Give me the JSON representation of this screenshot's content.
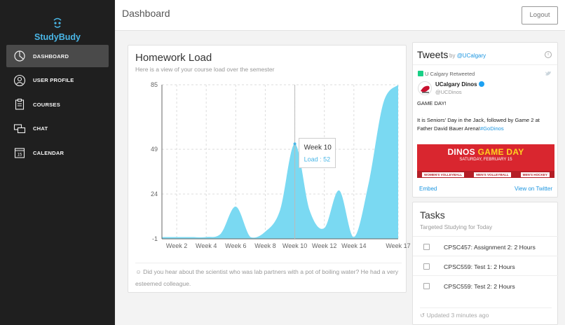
{
  "app": {
    "name": "StudyBudy",
    "accent": "#4ab6e6"
  },
  "sidebar": {
    "items": [
      {
        "label": "DASHBOARD",
        "icon": "pie-chart-icon",
        "active": true
      },
      {
        "label": "USER PROFILE",
        "icon": "user-icon",
        "active": false
      },
      {
        "label": "COURSES",
        "icon": "clipboard-icon",
        "active": false
      },
      {
        "label": "CHAT",
        "icon": "chat-icon",
        "active": false
      },
      {
        "label": "CALENDAR",
        "icon": "calendar-icon",
        "active": false
      }
    ],
    "calendar_day": "15"
  },
  "header": {
    "title": "Dashboard",
    "logout_label": "Logout"
  },
  "homework": {
    "title": "Homework Load",
    "subtitle": "Here is a view of your course load over the semester",
    "tooltip": {
      "title": "Week 10",
      "label": "Load : 52"
    },
    "joke": "Did you hear about the scientist who was lab partners with a pot of boiling water? He had a very esteemed colleague."
  },
  "chart_data": {
    "type": "area",
    "x": [
      1,
      2,
      3,
      4,
      5,
      6,
      7,
      8,
      9,
      10,
      11,
      12,
      13,
      14,
      15,
      16,
      17
    ],
    "x_tick_labels": [
      "Week 2",
      "Week 4",
      "Week 6",
      "Week 8",
      "Week 10",
      "Week 12",
      "Week 14",
      "Week 17"
    ],
    "x_tick_positions": [
      2,
      4,
      6,
      8,
      10,
      12,
      14,
      17
    ],
    "values": [
      0,
      0,
      0,
      0,
      2,
      17,
      0,
      3,
      15,
      52,
      15,
      5,
      26,
      0,
      30,
      75,
      85
    ],
    "y_ticks": [
      -1,
      24,
      49,
      85
    ],
    "ylim": [
      -1,
      85
    ],
    "grid": true,
    "color": "#7ad9f2"
  },
  "tweets": {
    "title": "Tweets",
    "by_prefix": "by",
    "by_handle": "@UCalgary",
    "retweeted": "U Calgary Retweeted",
    "user_name": "UCalgary Dinos",
    "user_handle": "@UCDinos",
    "line1": "GAME DAY!",
    "line2": "It is Seniors' Day in the Jack, followed by Game 2 at Father David Bauer Arena!",
    "hashtag": "#GoDinos",
    "image": {
      "headline_a": "DINOS",
      "headline_b": "GAME DAY",
      "date": "SATURDAY, FEBRUARY 15",
      "sports": [
        "WOMEN'S VOLLEYBALL",
        "MEN'S VOLLEYBALL",
        "MEN'S HOCKEY"
      ]
    },
    "embed": "Embed",
    "view_on": "View on Twitter"
  },
  "tasks": {
    "title": "Tasks",
    "subtitle": "Targeted Studying for Today",
    "items": [
      "CPSC457: Assignment 2: 2 Hours",
      "CPSC559: Test 1: 2 Hours",
      "CPSC559: Test 2: 2 Hours"
    ],
    "updated": "Updated 3 minutes ago"
  }
}
